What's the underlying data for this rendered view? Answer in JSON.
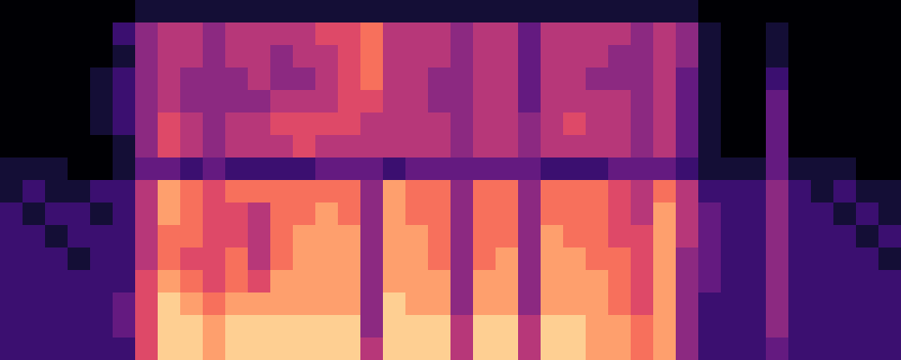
{
  "chart_data": {
    "type": "heatmap",
    "color": "magma",
    "tick_labels": false,
    "zlim": [
      0,
      10
    ],
    "cells": [
      [
        0,
        0,
        0,
        0,
        0,
        0,
        1,
        1,
        1,
        1,
        1,
        1,
        1,
        1,
        1,
        1,
        1,
        1,
        1,
        1,
        1,
        1,
        1,
        1,
        1,
        1,
        1,
        1,
        1,
        1,
        1,
        0,
        0,
        0,
        0,
        0,
        0,
        0,
        0,
        0
      ],
      [
        0,
        0,
        0,
        0,
        0,
        2,
        4,
        5,
        5,
        4,
        5,
        5,
        5,
        5,
        6,
        6,
        7,
        5,
        5,
        5,
        4,
        5,
        5,
        3,
        5,
        5,
        5,
        5,
        4,
        5,
        4,
        1,
        0,
        0,
        1,
        0,
        0,
        0,
        0,
        0
      ],
      [
        0,
        0,
        0,
        0,
        0,
        1,
        4,
        5,
        5,
        4,
        5,
        5,
        4,
        5,
        5,
        6,
        7,
        5,
        5,
        5,
        4,
        5,
        5,
        3,
        5,
        5,
        5,
        4,
        4,
        5,
        4,
        1,
        0,
        0,
        1,
        0,
        0,
        0,
        0,
        0
      ],
      [
        0,
        0,
        0,
        0,
        1,
        2,
        4,
        5,
        4,
        4,
        4,
        5,
        4,
        4,
        5,
        6,
        7,
        5,
        5,
        4,
        4,
        5,
        5,
        3,
        5,
        5,
        4,
        4,
        4,
        5,
        3,
        1,
        0,
        0,
        2,
        0,
        0,
        0,
        0,
        0
      ],
      [
        0,
        0,
        0,
        0,
        1,
        2,
        4,
        5,
        4,
        4,
        4,
        4,
        5,
        5,
        5,
        6,
        6,
        5,
        5,
        4,
        4,
        5,
        5,
        3,
        5,
        5,
        5,
        5,
        4,
        5,
        3,
        1,
        0,
        0,
        3,
        0,
        0,
        0,
        0,
        0
      ],
      [
        0,
        0,
        0,
        0,
        1,
        2,
        4,
        6,
        5,
        4,
        5,
        5,
        6,
        6,
        6,
        6,
        5,
        5,
        5,
        5,
        4,
        5,
        5,
        4,
        5,
        6,
        5,
        5,
        4,
        5,
        3,
        1,
        0,
        0,
        3,
        0,
        0,
        0,
        0,
        0
      ],
      [
        0,
        0,
        0,
        0,
        0,
        1,
        4,
        6,
        5,
        4,
        5,
        5,
        5,
        6,
        5,
        5,
        5,
        5,
        5,
        5,
        4,
        5,
        5,
        4,
        5,
        5,
        5,
        5,
        4,
        5,
        3,
        1,
        0,
        0,
        3,
        0,
        0,
        0,
        0,
        0
      ],
      [
        1,
        1,
        1,
        0,
        0,
        1,
        3,
        3,
        2,
        3,
        2,
        2,
        2,
        2,
        3,
        3,
        3,
        2,
        3,
        3,
        3,
        3,
        3,
        3,
        2,
        2,
        2,
        3,
        3,
        3,
        2,
        1,
        1,
        1,
        3,
        1,
        1,
        1,
        0,
        0
      ],
      [
        1,
        2,
        1,
        1,
        2,
        2,
        5,
        8,
        7,
        6,
        7,
        7,
        7,
        7,
        7,
        7,
        4,
        8,
        7,
        7,
        4,
        7,
        7,
        4,
        7,
        7,
        7,
        6,
        5,
        7,
        5,
        2,
        2,
        2,
        4,
        2,
        1,
        2,
        1,
        1
      ],
      [
        2,
        1,
        2,
        2,
        1,
        2,
        5,
        8,
        7,
        6,
        6,
        5,
        7,
        7,
        8,
        7,
        4,
        8,
        7,
        7,
        4,
        7,
        7,
        4,
        7,
        7,
        7,
        6,
        5,
        8,
        5,
        3,
        2,
        2,
        4,
        2,
        2,
        1,
        2,
        1
      ],
      [
        2,
        2,
        1,
        2,
        2,
        2,
        5,
        7,
        7,
        6,
        6,
        5,
        7,
        8,
        8,
        8,
        4,
        8,
        8,
        7,
        4,
        7,
        7,
        4,
        8,
        7,
        7,
        6,
        6,
        8,
        5,
        3,
        2,
        2,
        4,
        2,
        2,
        2,
        1,
        2
      ],
      [
        2,
        2,
        2,
        1,
        2,
        2,
        5,
        7,
        6,
        6,
        7,
        5,
        7,
        8,
        8,
        8,
        4,
        8,
        8,
        7,
        4,
        7,
        8,
        4,
        8,
        8,
        7,
        7,
        6,
        8,
        4,
        3,
        2,
        2,
        4,
        2,
        2,
        2,
        2,
        1
      ],
      [
        2,
        2,
        2,
        2,
        2,
        2,
        6,
        8,
        7,
        6,
        7,
        6,
        8,
        8,
        8,
        8,
        4,
        8,
        8,
        8,
        4,
        8,
        8,
        4,
        8,
        8,
        8,
        7,
        6,
        8,
        4,
        3,
        2,
        2,
        4,
        2,
        2,
        2,
        2,
        2
      ],
      [
        2,
        2,
        2,
        2,
        2,
        3,
        6,
        9,
        8,
        7,
        8,
        8,
        8,
        8,
        8,
        8,
        4,
        9,
        8,
        8,
        4,
        8,
        8,
        4,
        8,
        8,
        8,
        7,
        6,
        8,
        4,
        2,
        2,
        2,
        4,
        2,
        2,
        2,
        2,
        2
      ],
      [
        2,
        2,
        2,
        2,
        2,
        3,
        6,
        9,
        9,
        8,
        9,
        9,
        9,
        9,
        9,
        9,
        4,
        9,
        9,
        9,
        5,
        9,
        9,
        5,
        9,
        9,
        8,
        8,
        7,
        8,
        4,
        2,
        2,
        2,
        4,
        2,
        2,
        2,
        2,
        2
      ],
      [
        2,
        2,
        2,
        2,
        2,
        2,
        6,
        9,
        9,
        8,
        9,
        9,
        9,
        9,
        9,
        9,
        5,
        9,
        9,
        9,
        5,
        9,
        9,
        5,
        9,
        9,
        8,
        8,
        7,
        8,
        4,
        2,
        2,
        2,
        3,
        2,
        2,
        2,
        2,
        2
      ]
    ]
  }
}
